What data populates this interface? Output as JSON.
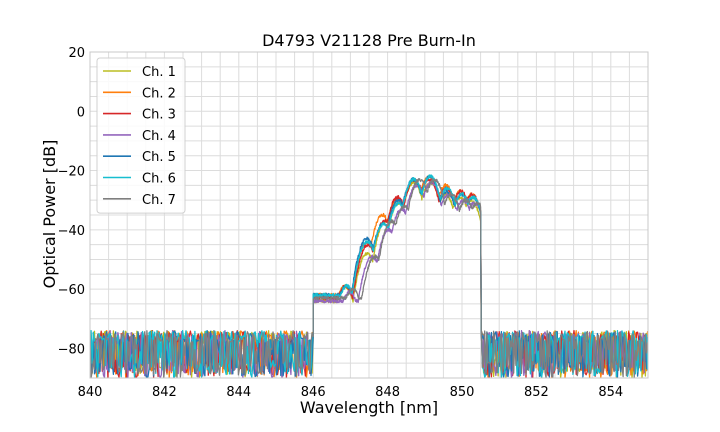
{
  "chart_data": {
    "type": "line",
    "title": "D4793 V21128 Pre Burn-In",
    "xlabel": "Wavelength [nm]",
    "ylabel": "Optical Power [dB]",
    "xlim": [
      840,
      855
    ],
    "ylim": [
      -90,
      20
    ],
    "xticks": [
      840,
      842,
      844,
      846,
      848,
      850,
      852,
      854
    ],
    "yticks": [
      -80,
      -60,
      -40,
      -20,
      0,
      20
    ],
    "grid": true,
    "legend_position": "top-left",
    "series": [
      {
        "name": "Ch. 1",
        "color": "#bcbd22",
        "peaks": [
          [
            846.2,
            -66
          ],
          [
            846.85,
            -59
          ],
          [
            847.45,
            -48
          ],
          [
            847.95,
            -37
          ],
          [
            848.3,
            -31
          ],
          [
            848.7,
            -24
          ],
          [
            849.15,
            -24
          ],
          [
            849.55,
            -28
          ],
          [
            849.95,
            -29
          ],
          [
            850.25,
            -30
          ]
        ]
      },
      {
        "name": "Ch. 2",
        "color": "#ff7f0e",
        "peaks": [
          [
            846.2,
            -65
          ],
          [
            846.85,
            -59
          ],
          [
            847.45,
            -44
          ],
          [
            847.85,
            -35
          ],
          [
            848.25,
            -30
          ],
          [
            848.7,
            -23
          ],
          [
            849.1,
            -22
          ],
          [
            849.55,
            -25
          ],
          [
            849.95,
            -27
          ],
          [
            850.25,
            -28
          ]
        ]
      },
      {
        "name": "Ch. 3",
        "color": "#d62728",
        "peaks": [
          [
            846.2,
            -66
          ],
          [
            846.85,
            -59
          ],
          [
            847.45,
            -45
          ],
          [
            847.9,
            -37
          ],
          [
            848.25,
            -29
          ],
          [
            848.7,
            -23
          ],
          [
            849.1,
            -23
          ],
          [
            849.55,
            -26
          ],
          [
            849.95,
            -27
          ],
          [
            850.25,
            -28
          ]
        ]
      },
      {
        "name": "Ch. 4",
        "color": "#9467bd",
        "peaks": [
          [
            846.3,
            -66
          ],
          [
            846.95,
            -61
          ],
          [
            847.55,
            -49
          ],
          [
            848.0,
            -40
          ],
          [
            848.35,
            -33
          ],
          [
            848.75,
            -25
          ],
          [
            849.15,
            -24
          ],
          [
            849.6,
            -28
          ],
          [
            850.0,
            -30
          ],
          [
            850.3,
            -31
          ]
        ]
      },
      {
        "name": "Ch. 5",
        "color": "#1f77b4",
        "peaks": [
          [
            846.2,
            -65
          ],
          [
            846.85,
            -59
          ],
          [
            847.4,
            -43
          ],
          [
            847.85,
            -38
          ],
          [
            848.25,
            -30
          ],
          [
            848.65,
            -23
          ],
          [
            849.1,
            -22
          ],
          [
            849.55,
            -27
          ],
          [
            849.95,
            -28
          ],
          [
            850.25,
            -29
          ]
        ]
      },
      {
        "name": "Ch. 6",
        "color": "#17becf",
        "peaks": [
          [
            846.2,
            -66
          ],
          [
            846.85,
            -59
          ],
          [
            847.4,
            -44
          ],
          [
            847.85,
            -38
          ],
          [
            848.25,
            -31
          ],
          [
            848.65,
            -23
          ],
          [
            849.1,
            -22
          ],
          [
            849.55,
            -26
          ],
          [
            849.95,
            -28
          ],
          [
            850.25,
            -29
          ]
        ]
      },
      {
        "name": "Ch. 7",
        "color": "#7f7f7f",
        "peaks": [
          [
            846.35,
            -67
          ],
          [
            847.0,
            -60
          ],
          [
            847.6,
            -49
          ],
          [
            848.05,
            -37
          ],
          [
            848.4,
            -32
          ],
          [
            848.8,
            -23
          ],
          [
            849.2,
            -23
          ],
          [
            849.65,
            -28
          ],
          [
            850.05,
            -30
          ],
          [
            850.35,
            -31
          ]
        ]
      }
    ],
    "noise_floor_range": [
      -90,
      -74
    ],
    "band_edges_nm": [
      846.0,
      850.5
    ]
  }
}
